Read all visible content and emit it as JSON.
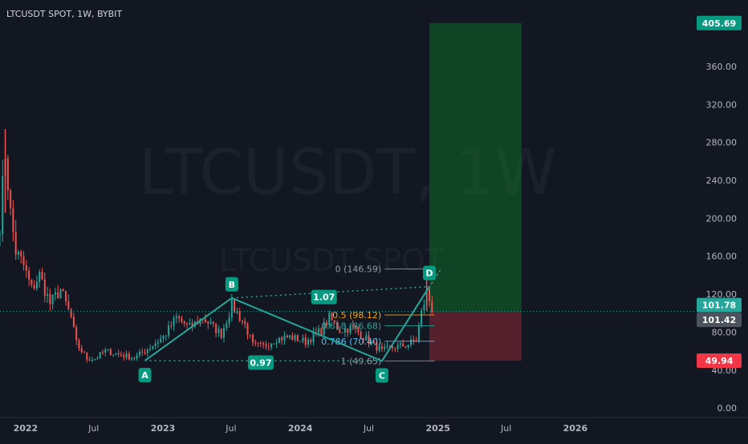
{
  "chart_data": {
    "type": "candlestick",
    "title": "LTCUSDT SPOT, 1W, BYBIT",
    "watermark": {
      "symbol_interval": "LTCUSDT, 1W",
      "symbol_type": "LTCUSDT SPOT"
    },
    "colors": {
      "background": "#131722",
      "up": "#26a69a",
      "down": "#ef5350",
      "pattern": "#26a69a",
      "axis_text": "#b2b5be",
      "fib_orange": "#f7a21b",
      "fib_blue": "#4fc3f7",
      "fib_green": "#26a69a",
      "fib_gray": "#9598a1",
      "target_zone": "rgba(8,153,41,0.35)",
      "stop_zone": "rgba(242,54,69,0.30)",
      "label_green": "#089981",
      "label_red": "#f23645"
    },
    "y_axis": {
      "range": [
        -10,
        430
      ],
      "ticks": [
        "0.00",
        "40.00",
        "80.00",
        "120.00",
        "160.00",
        "200.00",
        "240.00",
        "280.00",
        "320.00",
        "360.00"
      ],
      "tick_values": [
        0,
        40,
        80,
        120,
        160,
        200,
        240,
        280,
        320,
        360
      ]
    },
    "x_axis": {
      "start": "2021-10-25",
      "end": "2026-11-15",
      "labels": [
        {
          "date": "2022-01-01",
          "text": "2022"
        },
        {
          "date": "2022-07-01",
          "text": "Jul"
        },
        {
          "date": "2023-01-01",
          "text": "2023"
        },
        {
          "date": "2023-07-01",
          "text": "Jul"
        },
        {
          "date": "2024-01-01",
          "text": "2024"
        },
        {
          "date": "2024-07-01",
          "text": "Jul"
        },
        {
          "date": "2025-01-01",
          "text": "2025"
        },
        {
          "date": "2025-07-01",
          "text": "Jul"
        },
        {
          "date": "2026-01-01",
          "text": "2026"
        }
      ]
    },
    "price_anchors": [
      [
        "2021-10-25",
        195
      ],
      [
        "2021-11-08",
        270
      ],
      [
        "2021-11-22",
        205
      ],
      [
        "2021-12-06",
        165
      ],
      [
        "2021-12-27",
        150
      ],
      [
        "2022-01-17",
        125
      ],
      [
        "2022-02-07",
        140
      ],
      [
        "2022-03-07",
        110
      ],
      [
        "2022-04-04",
        125
      ],
      [
        "2022-05-02",
        95
      ],
      [
        "2022-05-16",
        68
      ],
      [
        "2022-06-13",
        52
      ],
      [
        "2022-07-04",
        52
      ],
      [
        "2022-08-01",
        60
      ],
      [
        "2022-09-12",
        56
      ],
      [
        "2022-10-17",
        53
      ],
      [
        "2022-11-21",
        62
      ],
      [
        "2023-01-02",
        75
      ],
      [
        "2023-02-06",
        95
      ],
      [
        "2023-03-13",
        85
      ],
      [
        "2023-04-17",
        95
      ],
      [
        "2023-06-05",
        78
      ],
      [
        "2023-07-03",
        108
      ],
      [
        "2023-08-07",
        88
      ],
      [
        "2023-08-28",
        66
      ],
      [
        "2023-09-25",
        65
      ],
      [
        "2023-10-30",
        73
      ],
      [
        "2023-12-04",
        75
      ],
      [
        "2024-01-15",
        70
      ],
      [
        "2024-02-26",
        82
      ],
      [
        "2024-03-18",
        95
      ],
      [
        "2024-04-15",
        82
      ],
      [
        "2024-05-20",
        85
      ],
      [
        "2024-06-24",
        73
      ],
      [
        "2024-08-05",
        60
      ],
      [
        "2024-09-02",
        64
      ],
      [
        "2024-10-07",
        66
      ],
      [
        "2024-11-04",
        72
      ],
      [
        "2024-11-18",
        100
      ],
      [
        "2024-12-02",
        122
      ],
      [
        "2024-12-16",
        105
      ]
    ],
    "highlights": [
      {
        "date": "2021-11-08",
        "high": 294
      },
      {
        "date": "2024-12-02",
        "high": 146
      }
    ],
    "pattern": {
      "points": [
        {
          "label": "A",
          "date": "2022-11-14",
          "price": 50
        },
        {
          "label": "B",
          "date": "2023-07-03",
          "price": 116
        },
        {
          "label": "C",
          "date": "2024-08-05",
          "price": 49.65
        },
        {
          "label": "D",
          "date": "2024-12-09",
          "price": 128
        }
      ],
      "ratios": [
        {
          "text": "1.07",
          "date": "2024-03-04",
          "price": 117
        },
        {
          "text": "0.97",
          "date": "2023-09-18",
          "price": 48
        }
      ]
    },
    "fib_levels": [
      {
        "ratio": "0",
        "price": 146.59,
        "text": "0 (146.59)"
      },
      {
        "ratio": "0.5",
        "price": 98.12,
        "text": "0.5 (98.12)"
      },
      {
        "ratio": "0.618",
        "price": 86.68,
        "text": "0.618 (86.68)"
      },
      {
        "ratio": "0.786",
        "price": 70.4,
        "text": "0.786 (70.40)"
      },
      {
        "ratio": "1",
        "price": 49.65,
        "text": "1 (49.65)"
      }
    ],
    "fib_span": {
      "start": "2024-08-12",
      "end": "2024-12-23"
    },
    "position": {
      "start": "2024-12-09",
      "end": "2025-08-11",
      "entry": 101.78,
      "target": 405.69,
      "stop": 49.94
    },
    "price_labels": [
      {
        "value": 405.69,
        "text": "405.69",
        "style": "green"
      },
      {
        "value": 101.78,
        "text": "101.78",
        "style": "teal"
      },
      {
        "value": 101.42,
        "text": "101.42",
        "style": "gray"
      },
      {
        "value": 49.94,
        "text": "49.94",
        "style": "red"
      }
    ]
  }
}
